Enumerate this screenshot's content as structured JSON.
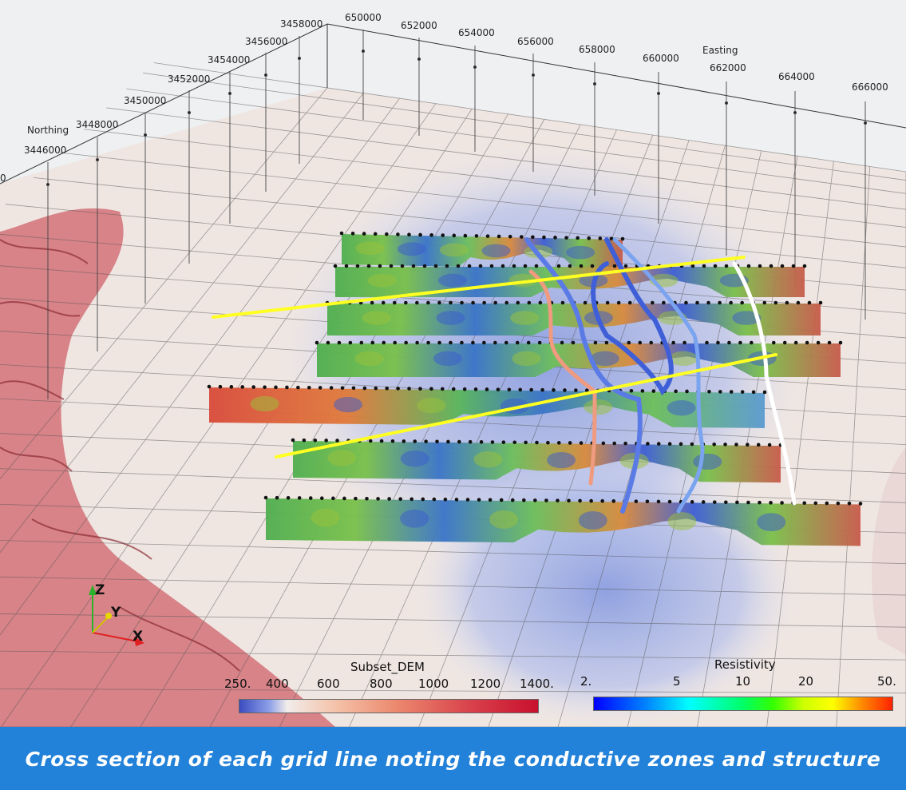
{
  "axes": {
    "northing_title": "Northing",
    "easting_title": "Easting",
    "northing_ticks": [
      "3446000",
      "3448000",
      "3450000",
      "3452000",
      "3454000",
      "3456000",
      "3458000"
    ],
    "easting_ticks": [
      "650000",
      "652000",
      "654000",
      "656000",
      "658000",
      "660000",
      "662000",
      "664000",
      "666000"
    ],
    "cut_label": "0"
  },
  "orientation": {
    "z": "Z",
    "y": "Y",
    "x": "X"
  },
  "dem_colorbar": {
    "title": "Subset_DEM",
    "ticks": [
      "250.",
      "400",
      "600",
      "800",
      "1000",
      "1200",
      "1400."
    ],
    "colors": [
      "#3b4cc0",
      "#f2ecea",
      "#c8102e"
    ]
  },
  "resistivity_colorbar": {
    "title": "Resistivity",
    "ticks": [
      "2.",
      "5",
      "10",
      "20",
      "50."
    ],
    "colors": [
      "#0000ff",
      "#00ffff",
      "#00ff00",
      "#ffff00",
      "#ff0000"
    ]
  },
  "caption": "Cross section of each grid line noting the conductive zones and structure",
  "colors": {
    "caption_bg": "#2281d8",
    "structure_line": "#ffff22",
    "station_dot": "#111111",
    "conductive_trace": "#4a6fe0"
  }
}
